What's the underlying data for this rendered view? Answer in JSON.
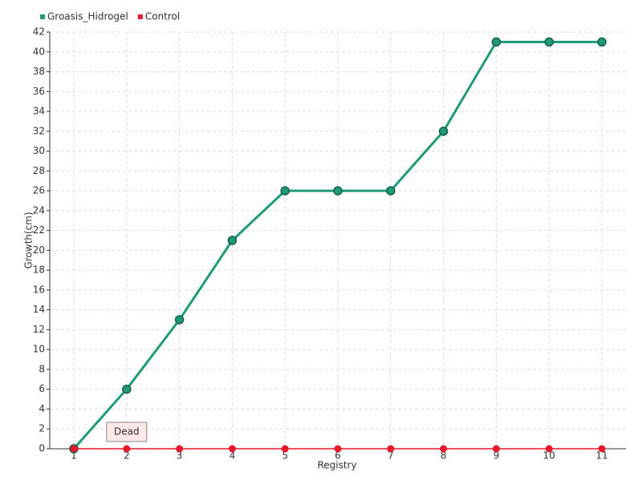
{
  "chart_data": {
    "type": "line",
    "x_label": "Registry",
    "y_label": "Growth(cm)",
    "categories": [
      "1",
      "2",
      "3",
      "4",
      "5",
      "6",
      "7",
      "8",
      "9",
      "10",
      "11"
    ],
    "series": [
      {
        "name": "Groasis_Hidrogel",
        "color": "#1f9a78",
        "values": [
          0,
          6,
          13,
          21,
          26,
          26,
          26,
          32,
          41,
          41,
          41
        ]
      },
      {
        "name": "Control",
        "color": "#e8192c",
        "values": [
          0,
          0,
          0,
          0,
          0,
          0,
          0,
          0,
          0,
          0,
          0
        ]
      }
    ],
    "annotations": [
      {
        "text": "Dead",
        "series": 1,
        "index": 1
      }
    ],
    "ylim": [
      0,
      42
    ],
    "yticks": [
      0,
      2,
      4,
      6,
      8,
      10,
      12,
      14,
      16,
      18,
      20,
      22,
      24,
      26,
      28,
      30,
      32,
      34,
      36,
      38,
      40,
      42
    ],
    "grid": true
  }
}
